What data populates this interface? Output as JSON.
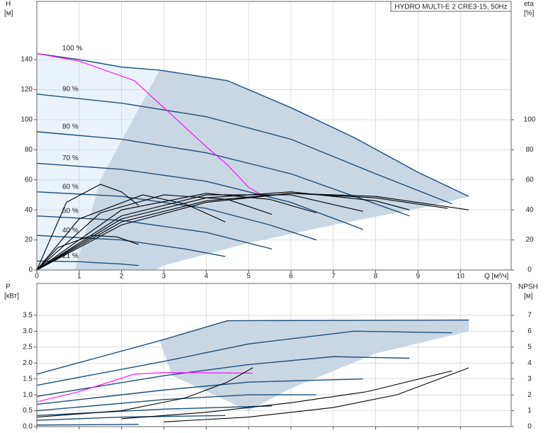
{
  "chart_data": [
    {
      "type": "line",
      "title": "HYDRO MULTI-E 2 CRE3-15, 50Hz",
      "y_label": "H",
      "y_unit": "[м]",
      "y2_label": "eta",
      "y2_unit": "[%]",
      "x_label": "Q [м³/ч]",
      "xlim": [
        0,
        11.2
      ],
      "ylim": [
        0,
        178.7
      ],
      "y2lim": [
        0,
        178.7
      ],
      "xticks": [
        0,
        1,
        2,
        3,
        4,
        5,
        6,
        7,
        8,
        9,
        10
      ],
      "yticks": [
        0,
        20,
        40,
        60,
        80,
        100,
        120,
        140
      ],
      "y2ticks": [
        0,
        20,
        40,
        60,
        80,
        100
      ],
      "grid": true,
      "xtick_labels": true,
      "areas": [
        {
          "color": "#eaf3fb",
          "x": [
            0,
            2.9,
            1.5,
            0.9,
            0
          ],
          "values": [
            144,
            133,
            60,
            0,
            0
          ]
        },
        {
          "color": "#c9d7e5",
          "x": [
            0.9,
            1.5,
            2.9,
            4.5,
            6,
            7.5,
            9,
            10.2,
            9.2,
            7,
            5,
            3,
            2.8
          ],
          "values": [
            0,
            60,
            133,
            126,
            108,
            88,
            65,
            49,
            42,
            30,
            18,
            3,
            0
          ]
        }
      ],
      "series": [
        {
          "name": "100 %",
          "color": "#1c4f7c",
          "x": [
            0,
            1,
            2,
            2.9,
            4.5,
            6,
            7.5,
            9,
            10.2
          ],
          "values": [
            144,
            140,
            135,
            133,
            126,
            108,
            88,
            65,
            49
          ]
        },
        {
          "name": "90 %",
          "color": "#1c4f7c",
          "x": [
            0,
            2,
            4,
            6,
            8,
            9.8
          ],
          "values": [
            117,
            111,
            102,
            87,
            64,
            44
          ]
        },
        {
          "name": "80 %",
          "color": "#1c4f7c",
          "x": [
            0,
            2,
            4,
            6,
            8,
            8.8
          ],
          "values": [
            92,
            87,
            78,
            64,
            44,
            36
          ]
        },
        {
          "name": "70 %",
          "color": "#1c4f7c",
          "x": [
            0,
            2,
            4,
            6,
            7.7
          ],
          "values": [
            71,
            67,
            59,
            45,
            27
          ]
        },
        {
          "name": "60 %",
          "color": "#1c4f7c",
          "x": [
            0,
            2,
            4,
            5.5,
            6.6
          ],
          "values": [
            52,
            49,
            41,
            30,
            20
          ]
        },
        {
          "name": "50 %",
          "color": "#1c4f7c",
          "x": [
            0,
            2,
            4,
            5.55
          ],
          "values": [
            36,
            33,
            25,
            14
          ]
        },
        {
          "name": "40 %",
          "color": "#1c4f7c",
          "x": [
            0,
            2,
            3.5,
            4.45
          ],
          "values": [
            23,
            20,
            14,
            9
          ]
        },
        {
          "name": "21 %",
          "color": "#1c4f7c",
          "x": [
            0,
            1,
            2,
            2.4
          ],
          "values": [
            6,
            5.5,
            4,
            3
          ]
        },
        {
          "color": "#ff00ff",
          "x": [
            0,
            1,
            2.3,
            3,
            4,
            4.5,
            5,
            5.3
          ],
          "values": [
            144,
            139,
            126,
            108,
            82,
            70,
            55,
            50
          ]
        },
        {
          "color": "#000000",
          "axis": "y2",
          "x": [
            0,
            2,
            4,
            6,
            8,
            10.2
          ],
          "values": [
            0,
            30,
            45,
            51,
            49,
            40
          ]
        },
        {
          "color": "#000000",
          "axis": "y2",
          "x": [
            0,
            2,
            4,
            6,
            8,
            9.7
          ],
          "values": [
            0,
            32,
            46,
            51,
            48,
            41
          ]
        },
        {
          "color": "#000000",
          "axis": "y2",
          "x": [
            0,
            2,
            4,
            6,
            8,
            8.8
          ],
          "values": [
            0,
            34,
            48,
            52,
            46,
            40
          ]
        },
        {
          "color": "#000000",
          "axis": "y2",
          "x": [
            0,
            2,
            4,
            6,
            7.7
          ],
          "values": [
            0,
            36,
            50,
            50,
            39
          ]
        },
        {
          "color": "#000000",
          "axis": "y2",
          "x": [
            0,
            2,
            4,
            5.5,
            6.6
          ],
          "values": [
            0,
            40,
            51,
            47,
            38
          ]
        },
        {
          "color": "#000000",
          "axis": "y2",
          "x": [
            0,
            1.5,
            3,
            4.5,
            5.55
          ],
          "values": [
            0,
            38,
            50,
            47,
            37
          ]
        },
        {
          "color": "#000000",
          "axis": "y2",
          "x": [
            0,
            1,
            2.5,
            3.5,
            4.45
          ],
          "values": [
            0,
            34,
            50,
            44,
            32
          ]
        },
        {
          "color": "#000000",
          "axis": "y2",
          "x": [
            0,
            0.7,
            1.5,
            2,
            2.4
          ],
          "values": [
            0,
            45,
            57,
            52,
            43
          ]
        },
        {
          "color": "#000000",
          "axis": "y2",
          "x": [
            0,
            0.5,
            1.3,
            1.9,
            2.4
          ],
          "values": [
            0,
            15,
            23,
            22,
            17
          ]
        }
      ]
    },
    {
      "type": "line",
      "y_label": "P",
      "y_unit": "[кВт]",
      "y2_label": "NPSH",
      "y2_unit": "[м]",
      "xlim": [
        0,
        11.2
      ],
      "ylim": [
        0,
        4.5
      ],
      "y2lim": [
        0,
        9
      ],
      "xticks": [
        0,
        1,
        2,
        3,
        4,
        5,
        6,
        7,
        8,
        9,
        10
      ],
      "yticks": [
        {
          "value": 0,
          "label": "0.0"
        },
        0.5,
        {
          "value": 1,
          "label": "1.0"
        },
        1.5,
        {
          "value": 2,
          "label": "2.0"
        },
        2.5,
        {
          "value": 3,
          "label": "3.0"
        },
        3.5
      ],
      "y2ticks": [
        0,
        1,
        2,
        3,
        4,
        5,
        6,
        7
      ],
      "grid": true,
      "xtick_labels": false,
      "areas": [
        {
          "color": "#c9d7e5",
          "x": [
            2.9,
            4.5,
            10.2,
            10.2,
            8,
            6,
            5,
            3.2
          ],
          "values": [
            2.7,
            3.33,
            3.35,
            3.0,
            2.3,
            1.2,
            0.5,
            1.6
          ]
        }
      ],
      "series": [
        {
          "color": "#1c4f7c",
          "x": [
            0,
            2.9,
            4.5,
            10.2
          ],
          "values": [
            1.65,
            2.7,
            3.33,
            3.35
          ]
        },
        {
          "color": "#1c4f7c",
          "x": [
            0,
            3,
            5,
            7.5,
            9.8
          ],
          "values": [
            1.3,
            2.05,
            2.6,
            3.0,
            2.95
          ]
        },
        {
          "color": "#1c4f7c",
          "x": [
            0,
            3,
            5,
            7,
            8.8
          ],
          "values": [
            0.95,
            1.6,
            1.95,
            2.2,
            2.15
          ]
        },
        {
          "color": "#1c4f7c",
          "x": [
            0,
            3,
            5,
            7.7
          ],
          "values": [
            0.7,
            1.15,
            1.4,
            1.5
          ]
        },
        {
          "color": "#1c4f7c",
          "x": [
            0,
            3,
            5,
            6.6
          ],
          "values": [
            0.5,
            0.85,
            1.0,
            1.0
          ]
        },
        {
          "color": "#1c4f7c",
          "x": [
            0,
            3,
            5.55
          ],
          "values": [
            0.35,
            0.55,
            0.65
          ]
        },
        {
          "color": "#1c4f7c",
          "x": [
            0,
            2,
            4.45
          ],
          "values": [
            0.2,
            0.3,
            0.35
          ]
        },
        {
          "color": "#1c4f7c",
          "x": [
            0,
            2.4
          ],
          "values": [
            0.05,
            0.07
          ]
        },
        {
          "color": "#ff00ff",
          "x": [
            0,
            1,
            2.3,
            3,
            5.1
          ],
          "values": [
            0.78,
            1.1,
            1.65,
            1.7,
            1.68
          ]
        },
        {
          "color": "#000000",
          "x": [
            0,
            2,
            3.5,
            4.5,
            5.1
          ],
          "values": [
            0.3,
            0.5,
            0.9,
            1.4,
            1.85
          ]
        },
        {
          "color": "#000000",
          "axis": "y2",
          "x": [
            3,
            5,
            7,
            8.5,
            10.2
          ],
          "values": [
            0.3,
            0.6,
            1.2,
            2.0,
            3.7
          ]
        },
        {
          "color": "#000000",
          "axis": "y2",
          "x": [
            2,
            4,
            6,
            7.8,
            9.8
          ],
          "values": [
            0.5,
            0.9,
            1.5,
            2.2,
            3.5
          ]
        }
      ]
    }
  ]
}
